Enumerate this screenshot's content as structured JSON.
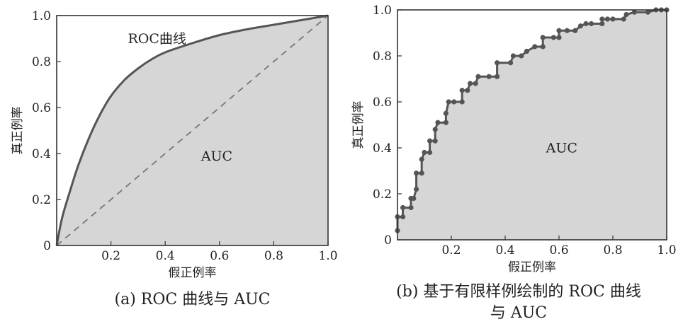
{
  "chart_data": [
    {
      "type": "area",
      "caption": "(a) ROC 曲线与 AUC",
      "xlabel": "假正例率",
      "ylabel": "真正例率",
      "xlim": [
        0,
        1
      ],
      "ylim": [
        0,
        1
      ],
      "xticks": [
        0.2,
        0.4,
        0.6,
        0.8,
        1.0
      ],
      "xtick_labels": [
        "0.2",
        "0.4",
        "0.6",
        "0.8",
        "1.0"
      ],
      "yticks": [
        0,
        0.2,
        0.4,
        0.6,
        0.8,
        1.0
      ],
      "ytick_labels": [
        "0",
        "0.2",
        "0.4",
        "0.6",
        "0.8",
        "1.0"
      ],
      "grid": false,
      "series": [
        {
          "name": "ROC曲线",
          "x": [
            0,
            0.02,
            0.05,
            0.08,
            0.12,
            0.16,
            0.2,
            0.25,
            0.3,
            0.35,
            0.4,
            0.5,
            0.6,
            0.7,
            0.8,
            0.9,
            1.0
          ],
          "y": [
            0,
            0.12,
            0.24,
            0.35,
            0.47,
            0.57,
            0.65,
            0.72,
            0.77,
            0.81,
            0.84,
            0.88,
            0.915,
            0.94,
            0.96,
            0.98,
            1.0
          ]
        }
      ],
      "diagonal": {
        "x": [
          0,
          1
        ],
        "y": [
          0,
          1
        ],
        "style": "dashed"
      },
      "annotations": [
        {
          "text": "ROC曲线",
          "x": 0.37,
          "y": 0.88
        },
        {
          "text": "AUC",
          "x": 0.59,
          "y": 0.37
        }
      ],
      "colors": {
        "fill": "#d6d6d6",
        "curve": "#555555",
        "diagonal": "#777777",
        "axis": "#333333"
      }
    },
    {
      "type": "area",
      "caption_lines": [
        "(b) 基于有限样例绘制的 ROC 曲线",
        "与 AUC"
      ],
      "xlabel": "假正例率",
      "ylabel": "真正例率",
      "xlim": [
        0,
        1
      ],
      "ylim": [
        0,
        1
      ],
      "xticks": [
        0.2,
        0.4,
        0.6,
        0.8,
        1.0
      ],
      "xtick_labels": [
        "0.2",
        "0.4",
        "0.6",
        "0.8",
        "1.0"
      ],
      "yticks": [
        0,
        0.2,
        0.4,
        0.6,
        0.8,
        1.0
      ],
      "ytick_labels": [
        "0",
        "0.2",
        "0.4",
        "0.6",
        "0.8",
        "1.0"
      ],
      "grid": false,
      "series": [
        {
          "step_points": [
            [
              0.0,
              0.04
            ],
            [
              0.0,
              0.1
            ],
            [
              0.02,
              0.1
            ],
            [
              0.02,
              0.14
            ],
            [
              0.05,
              0.14
            ],
            [
              0.05,
              0.18
            ],
            [
              0.06,
              0.18
            ],
            [
              0.07,
              0.22
            ],
            [
              0.07,
              0.29
            ],
            [
              0.09,
              0.29
            ],
            [
              0.09,
              0.35
            ],
            [
              0.1,
              0.38
            ],
            [
              0.12,
              0.38
            ],
            [
              0.12,
              0.43
            ],
            [
              0.14,
              0.43
            ],
            [
              0.14,
              0.48
            ],
            [
              0.15,
              0.51
            ],
            [
              0.18,
              0.51
            ],
            [
              0.18,
              0.55
            ],
            [
              0.19,
              0.6
            ],
            [
              0.21,
              0.6
            ],
            [
              0.24,
              0.6
            ],
            [
              0.24,
              0.65
            ],
            [
              0.26,
              0.65
            ],
            [
              0.27,
              0.68
            ],
            [
              0.29,
              0.68
            ],
            [
              0.3,
              0.71
            ],
            [
              0.34,
              0.71
            ],
            [
              0.37,
              0.71
            ],
            [
              0.37,
              0.77
            ],
            [
              0.42,
              0.77
            ],
            [
              0.43,
              0.8
            ],
            [
              0.46,
              0.8
            ],
            [
              0.48,
              0.82
            ],
            [
              0.51,
              0.84
            ],
            [
              0.54,
              0.84
            ],
            [
              0.54,
              0.88
            ],
            [
              0.58,
              0.88
            ],
            [
              0.6,
              0.88
            ],
            [
              0.6,
              0.91
            ],
            [
              0.63,
              0.91
            ],
            [
              0.66,
              0.91
            ],
            [
              0.68,
              0.93
            ],
            [
              0.7,
              0.94
            ],
            [
              0.72,
              0.94
            ],
            [
              0.76,
              0.94
            ],
            [
              0.76,
              0.96
            ],
            [
              0.78,
              0.96
            ],
            [
              0.8,
              0.96
            ],
            [
              0.84,
              0.96
            ],
            [
              0.85,
              0.98
            ],
            [
              0.88,
              0.99
            ],
            [
              0.93,
              0.99
            ],
            [
              0.96,
              1.0
            ],
            [
              0.98,
              1.0
            ],
            [
              1.0,
              1.0
            ]
          ]
        }
      ],
      "annotations": [
        {
          "text": "AUC",
          "x": 0.61,
          "y": 0.38
        }
      ],
      "colors": {
        "fill": "#d6d6d6",
        "curve": "#555555",
        "marker": "#555555",
        "axis": "#333333"
      }
    }
  ]
}
